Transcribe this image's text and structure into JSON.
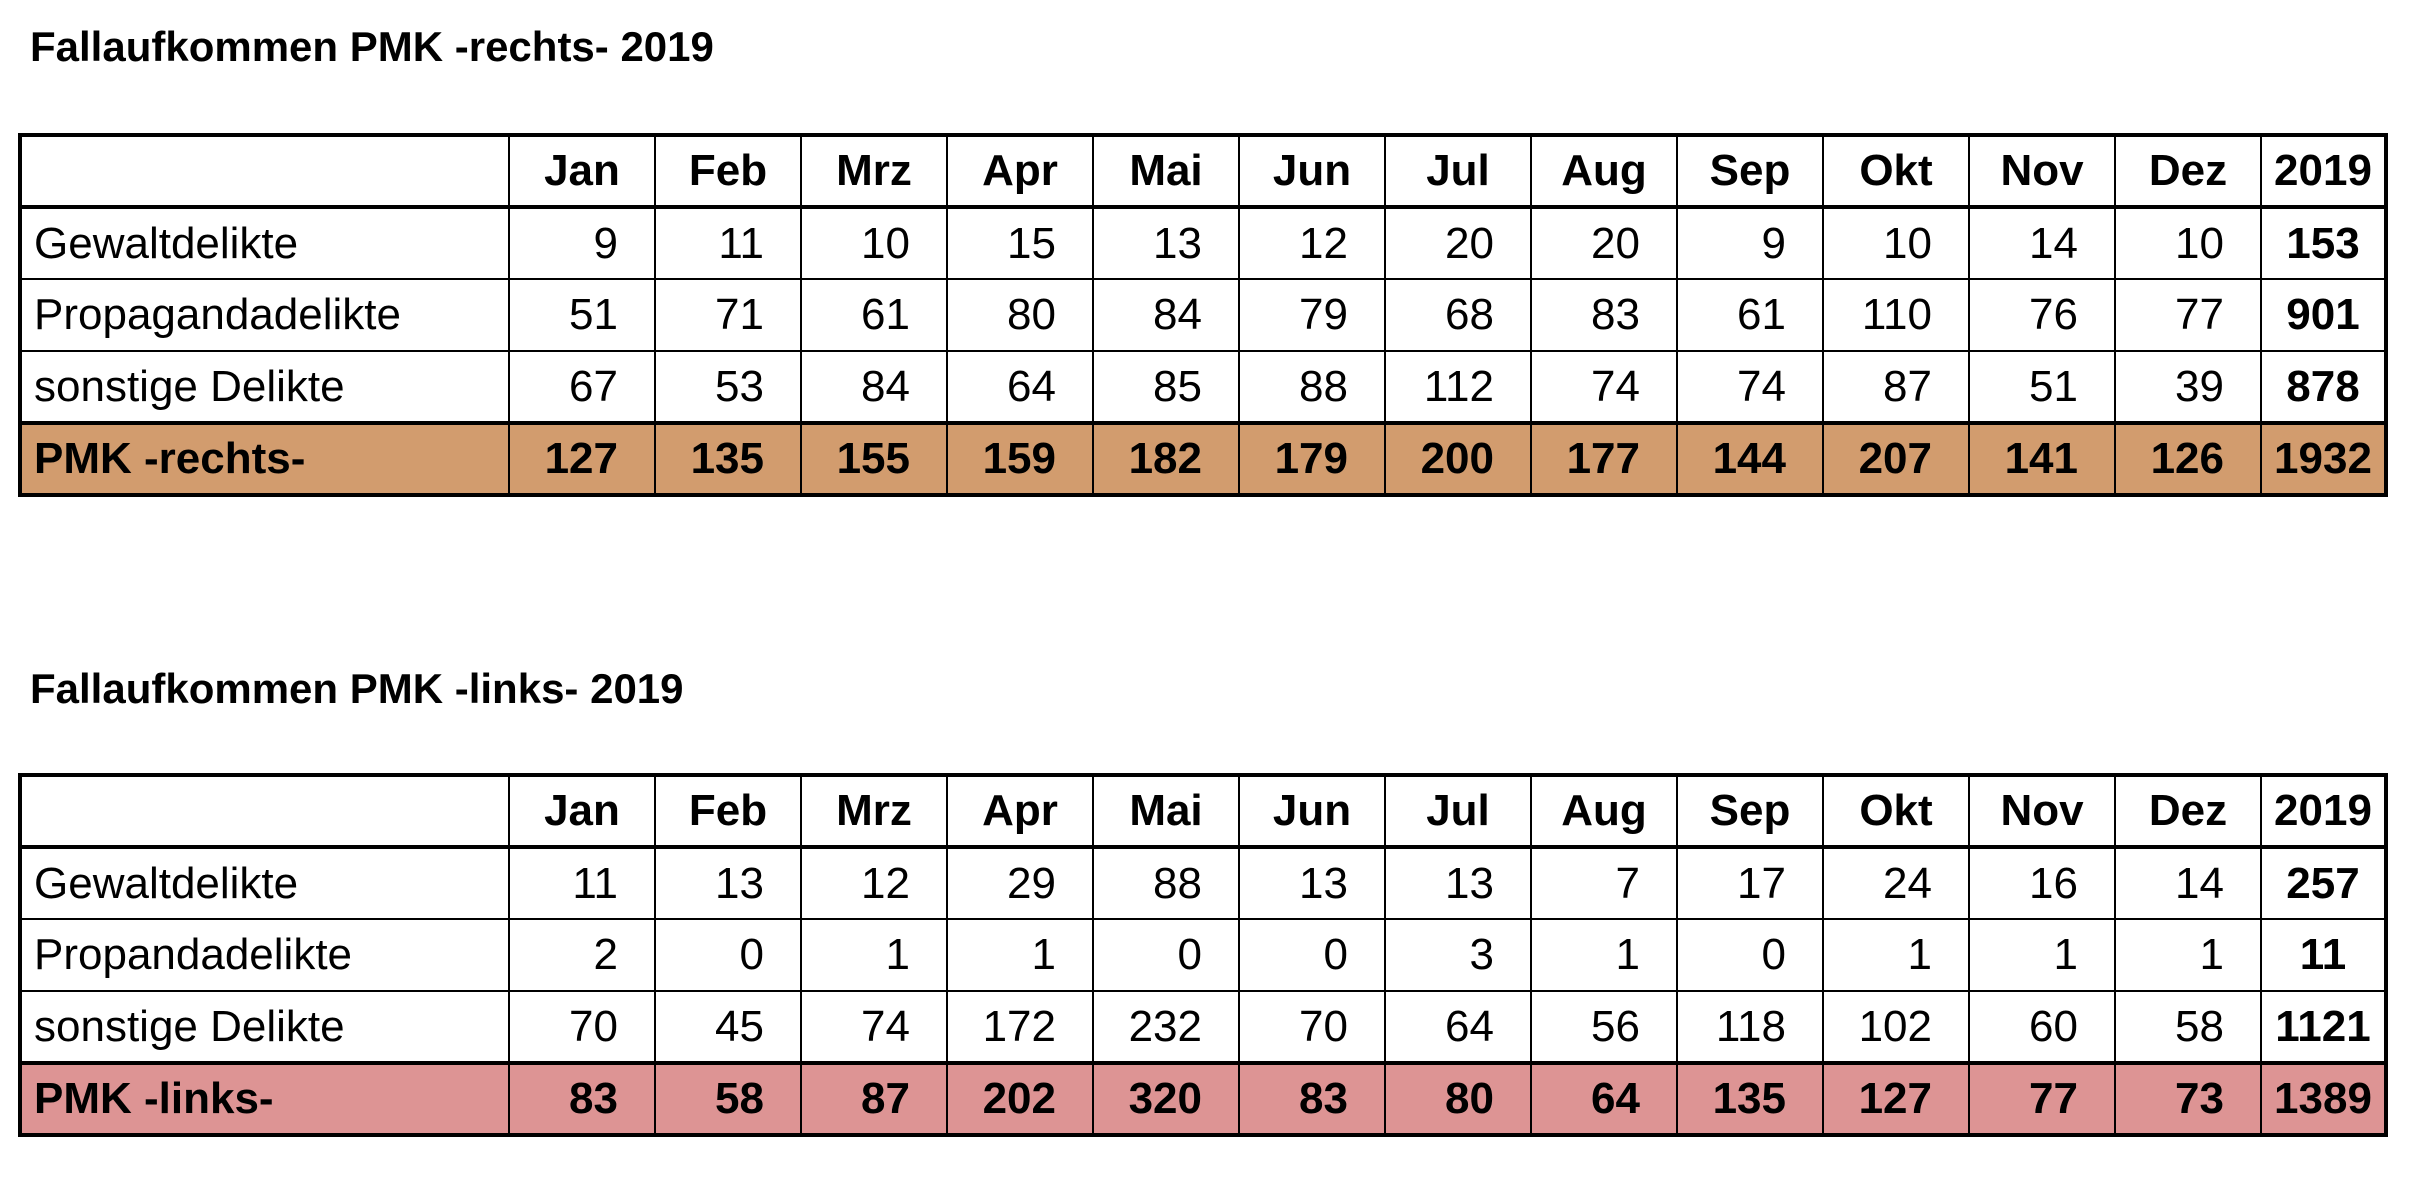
{
  "page": {
    "background": "#ffffff"
  },
  "tables": [
    {
      "title": "Fallaufkommen PMK -rechts- 2019",
      "corner_label": "",
      "columns": [
        "Jan",
        "Feb",
        "Mrz",
        "Apr",
        "Mai",
        "Jun",
        "Jul",
        "Aug",
        "Sep",
        "Okt",
        "Nov",
        "Dez",
        "2019"
      ],
      "rows": [
        {
          "label": "Gewaltdelikte",
          "values": [
            9,
            11,
            10,
            15,
            13,
            12,
            20,
            20,
            9,
            10,
            14,
            10
          ],
          "total": 153
        },
        {
          "label": "Propagandadelikte",
          "values": [
            51,
            71,
            61,
            80,
            84,
            79,
            68,
            83,
            61,
            110,
            76,
            77
          ],
          "total": 901
        },
        {
          "label": "sonstige Delikte",
          "values": [
            67,
            53,
            84,
            64,
            85,
            88,
            112,
            74,
            74,
            87,
            51,
            39
          ],
          "total": 878
        }
      ],
      "total_row": {
        "label": "PMK -rechts-",
        "values": [
          127,
          135,
          155,
          159,
          182,
          179,
          200,
          177,
          144,
          207,
          141,
          126
        ],
        "total": 1932,
        "highlight_color": "#D29C6E"
      }
    },
    {
      "title": "Fallaufkommen PMK -links- 2019",
      "corner_label": "",
      "columns": [
        "Jan",
        "Feb",
        "Mrz",
        "Apr",
        "Mai",
        "Jun",
        "Jul",
        "Aug",
        "Sep",
        "Okt",
        "Nov",
        "Dez",
        "2019"
      ],
      "rows": [
        {
          "label": "Gewaltdelikte",
          "values": [
            11,
            13,
            12,
            29,
            88,
            13,
            13,
            7,
            17,
            24,
            16,
            14
          ],
          "total": 257
        },
        {
          "label": "Propandadelikte",
          "values": [
            2,
            0,
            1,
            1,
            0,
            0,
            3,
            1,
            0,
            1,
            1,
            1
          ],
          "total": 11
        },
        {
          "label": "sonstige Delikte",
          "values": [
            70,
            45,
            74,
            172,
            232,
            70,
            64,
            56,
            118,
            102,
            60,
            58
          ],
          "total": 1121
        }
      ],
      "total_row": {
        "label": "PMK -links-",
        "values": [
          83,
          58,
          87,
          202,
          320,
          83,
          80,
          64,
          135,
          127,
          77,
          73
        ],
        "total": 1389,
        "highlight_color": "#DD9494"
      }
    }
  ]
}
